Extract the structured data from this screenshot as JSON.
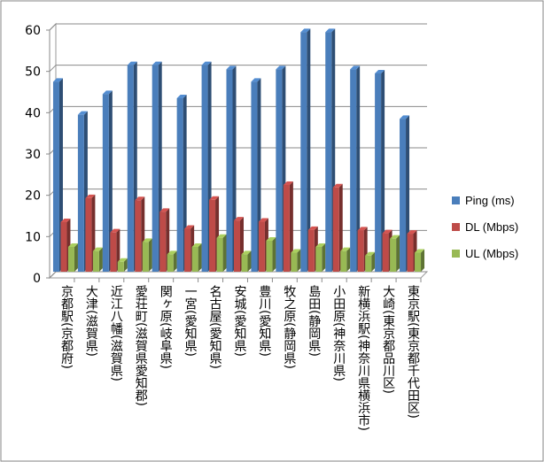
{
  "chart_data": {
    "type": "bar",
    "title": "",
    "xlabel": "",
    "ylabel": "",
    "ylim": [
      0,
      60
    ],
    "yticks": [
      0,
      10,
      20,
      30,
      40,
      50,
      60
    ],
    "grid": true,
    "legend_position": "right",
    "categories": [
      "京都駅(京都府)",
      "大津(滋賀県)",
      "近江八幡(滋賀県)",
      "愛荘町(滋賀県愛知郡)",
      "関ヶ原(岐阜県)",
      "一宮(愛知県)",
      "名古屋(愛知県)",
      "安城(愛知県)",
      "豊川(愛知県)",
      "牧之原(静岡県)",
      "島田(静岡県)",
      "小田原(神奈川県)",
      "新横浜駅(神奈川県横浜市)",
      "大崎(東京都品川区)",
      "東京駅(東京都千代田区)"
    ],
    "series": [
      {
        "name": "Ping (ms)",
        "color": "#4a7ebb",
        "values": [
          46,
          38,
          43,
          50,
          50,
          42,
          50,
          49,
          46,
          49,
          58,
          58,
          49,
          48,
          37
        ]
      },
      {
        "name": "DL (Mbps)",
        "color": "#be4b48",
        "values": [
          12,
          17.8,
          9.5,
          17.3,
          14.5,
          10.4,
          17.4,
          12.4,
          12.1,
          21,
          10.1,
          20.4,
          10,
          9.3,
          9.2
        ]
      },
      {
        "name": "UL (Mbps)",
        "color": "#98b954",
        "values": [
          6,
          5,
          2.4,
          7.2,
          4.2,
          6,
          8.2,
          4.2,
          7.5,
          4.6,
          6,
          5,
          3.9,
          8,
          4.6
        ]
      }
    ]
  }
}
